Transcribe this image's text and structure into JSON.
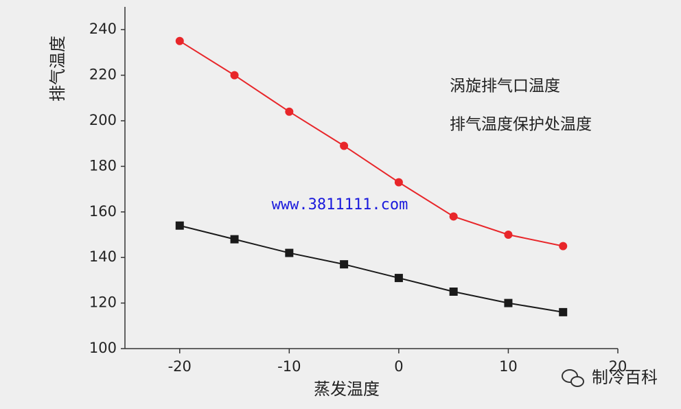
{
  "chart_data": {
    "type": "line",
    "x_label": "蒸发温度",
    "y_label": "排气温度",
    "x": [
      -20,
      -15,
      -10,
      -5,
      0,
      5,
      10,
      15
    ],
    "series": [
      {
        "name": "涡旋排气口温度",
        "color": "#e8262a",
        "marker": "circle",
        "values": [
          235,
          220,
          204,
          189,
          173,
          158,
          150,
          145
        ]
      },
      {
        "name": "排气温度保护处温度",
        "color": "#1a1a1a",
        "marker": "square",
        "values": [
          154,
          148,
          142,
          137,
          131,
          125,
          120,
          116
        ]
      }
    ],
    "xlim": [
      -25,
      20
    ],
    "xticks": [
      -20,
      -10,
      0,
      10,
      20
    ],
    "ylim": [
      100,
      250
    ],
    "yticks": [
      100,
      120,
      140,
      160,
      180,
      200,
      220,
      240
    ],
    "annotations": [
      "www.3811111.com",
      "制冷百科"
    ]
  }
}
